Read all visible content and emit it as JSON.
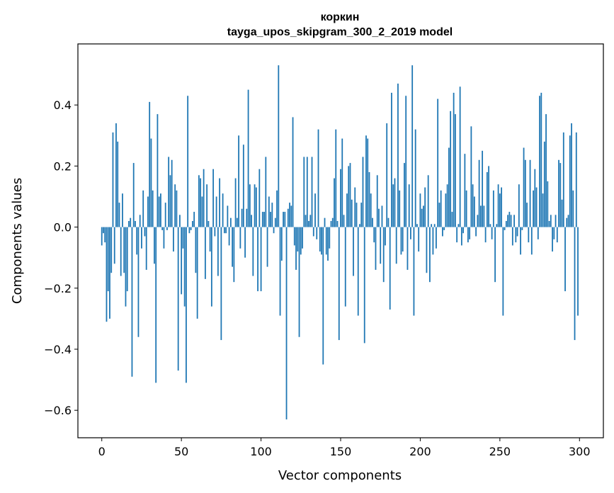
{
  "chart_data": {
    "type": "bar",
    "title": "коркин",
    "subtitle": "tayga_upos_skipgram_300_2_2019 model",
    "xlabel": "Vector components",
    "ylabel": "Components values",
    "xlim": [
      -15,
      315
    ],
    "ylim": [
      -0.69,
      0.6
    ],
    "xticks": [
      0,
      50,
      100,
      150,
      200,
      250,
      300
    ],
    "xtick_labels": [
      "0",
      "50",
      "100",
      "150",
      "200",
      "250",
      "300"
    ],
    "yticks": [
      -0.6,
      -0.4,
      -0.2,
      0.0,
      0.2,
      0.4
    ],
    "ytick_labels": [
      "−0.6",
      "−0.4",
      "−0.2",
      "0.0",
      "0.2",
      "0.4"
    ],
    "bar_color": "#1f77b4",
    "x": "0..299 (vector component index)",
    "values": [
      -0.06,
      -0.02,
      -0.05,
      -0.31,
      -0.21,
      -0.3,
      -0.15,
      0.31,
      -0.12,
      0.34,
      0.28,
      0.08,
      -0.16,
      0.11,
      -0.15,
      -0.26,
      -0.21,
      0.02,
      0.03,
      -0.49,
      0.21,
      0.02,
      -0.09,
      -0.36,
      0.04,
      -0.07,
      0.12,
      -0.03,
      -0.14,
      0.1,
      0.41,
      0.29,
      0.12,
      -0.12,
      -0.51,
      0.37,
      0.1,
      0.11,
      -0.01,
      -0.07,
      0.08,
      -0.01,
      0.23,
      0.17,
      0.22,
      -0.08,
      0.14,
      0.12,
      -0.47,
      0.04,
      -0.22,
      -0.07,
      -0.26,
      -0.51,
      0.43,
      -0.02,
      -0.01,
      0.02,
      0.05,
      -0.15,
      -0.3,
      0.17,
      0.16,
      0.1,
      0.19,
      -0.17,
      0.14,
      0.02,
      -0.08,
      -0.26,
      0.19,
      -0.03,
      0.1,
      -0.16,
      0.16,
      -0.37,
      0.11,
      -0.02,
      -0.02,
      0.07,
      -0.06,
      0.03,
      -0.13,
      -0.18,
      0.16,
      0.03,
      0.3,
      -0.07,
      0.06,
      0.27,
      -0.1,
      0.06,
      0.45,
      0.14,
      0.04,
      -0.16,
      0.14,
      0.13,
      -0.21,
      0.19,
      -0.21,
      0.05,
      0.05,
      0.23,
      -0.13,
      0.1,
      0.05,
      0.08,
      -0.02,
      0.03,
      0.12,
      0.53,
      -0.29,
      -0.11,
      0.05,
      0.05,
      -0.63,
      0.06,
      0.08,
      0.07,
      0.36,
      -0.06,
      -0.14,
      -0.08,
      -0.36,
      -0.09,
      -0.07,
      0.23,
      0.04,
      0.23,
      0.02,
      0.04,
      0.23,
      -0.03,
      0.11,
      -0.04,
      0.32,
      -0.08,
      -0.09,
      -0.45,
      0.03,
      -0.09,
      -0.11,
      -0.07,
      0.02,
      0.03,
      0.16,
      0.32,
      0.02,
      -0.37,
      0.19,
      0.29,
      0.04,
      -0.26,
      0.11,
      0.2,
      0.21,
      0.09,
      -0.16,
      0.13,
      0.08,
      -0.29,
      0.01,
      0.08,
      0.23,
      -0.38,
      0.3,
      0.29,
      0.18,
      0.11,
      0.03,
      -0.05,
      -0.14,
      0.17,
      0.06,
      -0.12,
      0.07,
      -0.18,
      -0.06,
      0.34,
      0.03,
      -0.27,
      0.44,
      0.14,
      0.16,
      -0.12,
      0.47,
      0.12,
      -0.09,
      -0.08,
      0.21,
      0.43,
      -0.14,
      0.14,
      -0.04,
      0.53,
      -0.29,
      0.32,
      0.01,
      -0.08,
      0.11,
      0.06,
      0.07,
      0.13,
      -0.15,
      0.17,
      -0.18,
      0.01,
      -0.09,
      0.01,
      -0.07,
      0.42,
      0.08,
      0.12,
      -0.03,
      -0.01,
      0.11,
      0.14,
      0.26,
      0.38,
      0.05,
      0.44,
      0.37,
      -0.05,
      0.01,
      0.46,
      -0.06,
      -0.02,
      0.24,
      0.12,
      -0.05,
      -0.04,
      0.33,
      0.14,
      0.1,
      -0.03,
      0.04,
      0.22,
      0.07,
      0.25,
      0.07,
      -0.05,
      0.18,
      0.2,
      0.01,
      -0.04,
      0.12,
      -0.18,
      0.01,
      0.14,
      0.11,
      0.13,
      -0.29,
      -0.01,
      0.02,
      0.04,
      0.05,
      0.04,
      -0.06,
      0.04,
      -0.05,
      -0.03,
      0.14,
      -0.09,
      -0.01,
      0.26,
      0.22,
      0.08,
      -0.05,
      0.22,
      -0.09,
      0.12,
      0.19,
      0.13,
      -0.04,
      0.43,
      0.44,
      0.11,
      0.28,
      0.37,
      0.15,
      0.02,
      0.04,
      -0.08,
      -0.04,
      0.04,
      -0.05,
      0.22,
      0.21,
      0.09,
      0.31,
      -0.21,
      0.03,
      0.04,
      0.3,
      0.34,
      0.12,
      -0.37,
      0.31,
      -0.29
    ]
  }
}
